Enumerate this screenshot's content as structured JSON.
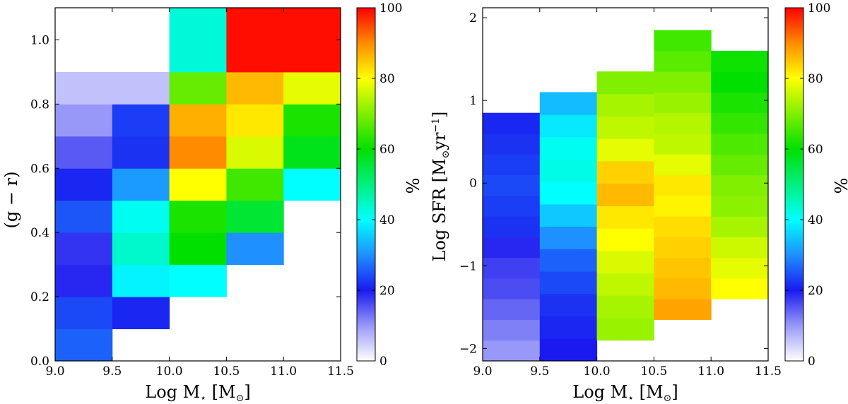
{
  "chart_data": [
    {
      "type": "heatmap",
      "xlabel_main": "Log M",
      "xlabel_sub": "⋆",
      "xlabel_tail": " [M",
      "xlabel_sun": "⊙",
      "xlabel_end": "]",
      "ylabel": "(g − r)",
      "colorbar_label": "%",
      "xlim": [
        9.0,
        11.5
      ],
      "ylim": [
        0.0,
        1.1
      ],
      "clim": [
        0,
        100
      ],
      "xticks": [
        9.0,
        9.5,
        10.0,
        10.5,
        11.0,
        11.5
      ],
      "xtick_labels": [
        "9.0",
        "9.5",
        "10.0",
        "10.5",
        "11.0",
        "11.5"
      ],
      "yticks": [
        0.0,
        0.2,
        0.4,
        0.6,
        0.8,
        1.0
      ],
      "ytick_labels": [
        "0.0",
        "0.2",
        "0.4",
        "0.6",
        "0.8",
        "1.0"
      ],
      "cticks": [
        0,
        20,
        40,
        60,
        80,
        100
      ],
      "ctick_labels": [
        "0",
        "20",
        "40",
        "60",
        "80",
        "100"
      ],
      "x_edges": [
        9.0,
        9.5,
        10.0,
        10.5,
        11.0,
        11.5
      ],
      "y_edges": [
        0.0,
        0.1,
        0.2,
        0.3,
        0.4,
        0.5,
        0.6,
        0.7,
        0.8,
        0.9,
        1.0,
        1.1
      ],
      "values": [
        [
          26,
          null,
          null,
          null,
          null
        ],
        [
          24,
          21,
          null,
          null,
          null
        ],
        [
          19,
          39,
          40,
          null,
          null
        ],
        [
          18,
          44,
          60,
          30,
          null
        ],
        [
          25,
          41,
          62,
          56,
          null
        ],
        [
          21,
          31,
          80,
          65,
          40
        ],
        [
          15,
          22,
          90,
          77,
          58
        ],
        [
          10,
          23,
          87,
          82,
          62
        ],
        [
          6,
          6,
          68,
          86,
          78
        ],
        [
          null,
          null,
          43,
          99,
          99
        ],
        [
          null,
          null,
          43,
          99,
          99
        ]
      ]
    },
    {
      "type": "heatmap",
      "xlabel_main": "Log M",
      "xlabel_sub": "⋆",
      "xlabel_tail": " [M",
      "xlabel_sun": "⊙",
      "xlabel_end": "]",
      "ylabel_main": "Log SFR [M",
      "ylabel_sun": "⊙",
      "ylabel_mid": "yr",
      "ylabel_exp": "−1",
      "ylabel_end": "]",
      "colorbar_label": "%",
      "xlim": [
        9.0,
        11.5
      ],
      "ylim": [
        -2.15,
        2.12
      ],
      "clim": [
        0,
        100
      ],
      "xticks": [
        9.0,
        9.5,
        10.0,
        10.5,
        11.0,
        11.5
      ],
      "xtick_labels": [
        "9.0",
        "9.5",
        "10.0",
        "10.5",
        "11.0",
        "11.5"
      ],
      "yticks": [
        -2,
        -1,
        0,
        1,
        2
      ],
      "ytick_labels": [
        "−2",
        "−1",
        "0",
        "1",
        "2"
      ],
      "cticks": [
        0,
        20,
        40,
        60,
        80,
        100
      ],
      "ctick_labels": [
        "0",
        "20",
        "40",
        "60",
        "80",
        "100"
      ],
      "columns": [
        {
          "x0": 9.0,
          "x1": 9.5,
          "y0": -2.15,
          "y1": 0.85,
          "values": [
            10,
            12,
            14,
            16,
            17,
            19,
            22,
            23,
            24,
            23,
            22,
            21
          ]
        },
        {
          "x0": 9.5,
          "x1": 10.0,
          "y0": -2.15,
          "y1": 1.1,
          "values": [
            20,
            21,
            22,
            24,
            26,
            30,
            35,
            40,
            42,
            41,
            38,
            34
          ]
        },
        {
          "x0": 10.0,
          "x1": 10.5,
          "y0": -1.9,
          "y1": 1.35,
          "values": [
            72,
            73,
            75,
            77,
            80,
            82,
            86,
            84,
            78,
            75,
            73,
            70
          ]
        },
        {
          "x0": 10.5,
          "x1": 11.0,
          "y0": -1.65,
          "y1": 1.85,
          "values": [
            88,
            86,
            85,
            84,
            83,
            81,
            82,
            78,
            75,
            74,
            72,
            70,
            67,
            65
          ]
        },
        {
          "x0": 11.0,
          "x1": 11.5,
          "y0": -1.4,
          "y1": 1.6,
          "values": [
            80,
            78,
            76,
            73,
            71,
            70,
            68,
            66,
            64,
            62,
            60,
            61
          ]
        }
      ]
    }
  ]
}
